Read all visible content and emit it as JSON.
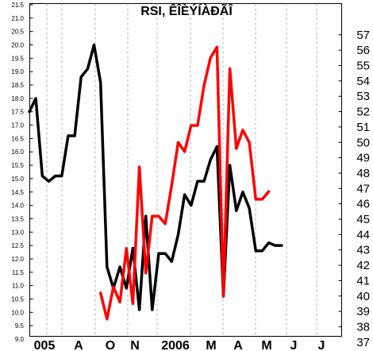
{
  "chart_data": {
    "type": "line",
    "title": "RSI, ÊÎÈÝÍÀÐÃÎ",
    "x_ticks": [
      "005",
      "A",
      "O",
      "N",
      "2006",
      "M",
      "A",
      "M",
      "J",
      "J"
    ],
    "left_axis": {
      "ylim": [
        9.0,
        21.5
      ],
      "ticks": [
        "9.0",
        "9.5",
        "10.0",
        "10.5",
        "11.0",
        "11.5",
        "12.0",
        "12.5",
        "13.0",
        "13.5",
        "14.0",
        "14.5",
        "15.0",
        "15.5",
        "16.0",
        "16.5",
        "17.0",
        "17.5",
        "18.0",
        "18.5",
        "19.0",
        "19.5",
        "20.0",
        "20.5",
        "21.0",
        "21.5"
      ]
    },
    "right_axis": {
      "ylim": [
        36.5,
        57.5
      ],
      "ticks": [
        "37",
        "38",
        "39",
        "40",
        "41",
        "42",
        "43",
        "44",
        "45",
        "46",
        "47",
        "48",
        "49",
        "50",
        "51",
        "52",
        "53",
        "54",
        "55",
        "56",
        "57"
      ]
    },
    "grid": "vertical-dashed",
    "series": [
      {
        "axis": "left",
        "color": "#000000",
        "x": [
          0,
          1,
          2,
          3,
          4,
          5,
          6,
          7,
          8,
          9,
          10,
          11,
          12,
          13,
          14,
          15,
          16,
          17,
          18,
          19,
          20,
          21,
          22,
          23,
          24,
          25,
          26,
          27,
          28,
          29,
          30,
          31,
          32,
          33,
          34,
          35,
          36,
          37,
          38,
          39
        ],
        "values": [
          17.5,
          18.0,
          15.1,
          14.9,
          15.1,
          15.1,
          16.6,
          16.6,
          18.8,
          19.1,
          20.0,
          18.6,
          11.7,
          10.9,
          11.7,
          10.9,
          12.4,
          10.1,
          13.6,
          10.1,
          12.2,
          12.2,
          11.9,
          12.9,
          14.4,
          14.0,
          14.9,
          14.9,
          15.7,
          16.2,
          10.6,
          15.5,
          13.8,
          14.5,
          13.9,
          12.3,
          12.3,
          12.6,
          12.5,
          12.5
        ]
      },
      {
        "axis": "right",
        "color": "#ff0000",
        "x": [
          11,
          12,
          13,
          14,
          15,
          16,
          17,
          18,
          19,
          20,
          21,
          22,
          23,
          24,
          25,
          26,
          27,
          28,
          29,
          30,
          31,
          32,
          33,
          34,
          35,
          36,
          37
        ],
        "values": [
          40.2,
          38.5,
          40.6,
          39.6,
          43.1,
          39.5,
          48.4,
          41.5,
          45.2,
          45.2,
          44.7,
          47.2,
          50.0,
          49.4,
          51.1,
          51.1,
          53.7,
          55.5,
          56.2,
          40.0,
          54.8,
          49.6,
          50.8,
          50.0,
          46.3,
          46.3,
          46.8
        ]
      }
    ]
  }
}
